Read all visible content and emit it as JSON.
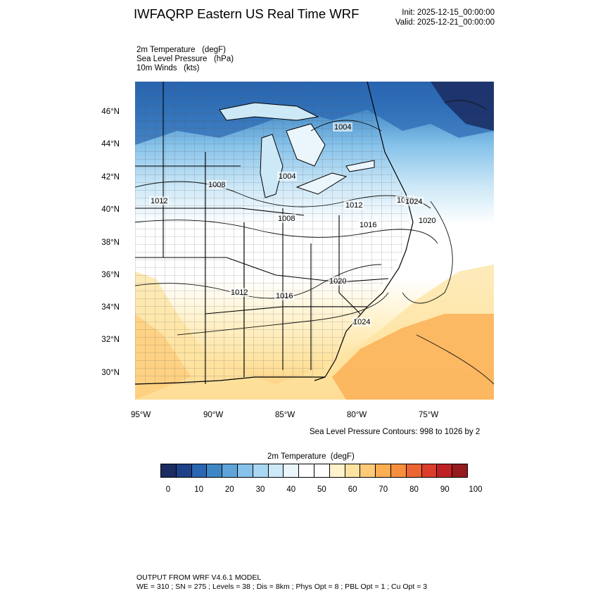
{
  "header": {
    "title": "IWFAQRP Eastern US Real Time WRF",
    "init": "Init: 2025-12-15_00:00:00",
    "valid": "Valid: 2025-12-21_00:00:00"
  },
  "fields": [
    "2m Temperature   (degF)",
    "Sea Level Pressure   (hPa)",
    "10m Winds   (kts)"
  ],
  "map": {
    "lat_labels": [
      "46°N",
      "44°N",
      "42°N",
      "40°N",
      "38°N",
      "36°N",
      "34°N",
      "32°N",
      "30°N"
    ],
    "lon_labels": [
      "95°W",
      "90°W",
      "85°W",
      "80°W",
      "75°W"
    ],
    "slp_labels": [
      "1004",
      "1004",
      "1008",
      "1012",
      "1008",
      "1012",
      "1016",
      "1020",
      "1024",
      "1020",
      "1012",
      "1016",
      "1020",
      "1024"
    ],
    "contour_note": "Sea Level Pressure Contours: 998 to 1026 by 2"
  },
  "colorbar": {
    "title": "2m Temperature  (degF)",
    "ticks": [
      "0",
      "10",
      "20",
      "30",
      "40",
      "50",
      "60",
      "70",
      "80",
      "90",
      "100"
    ],
    "colors": [
      "#1b2c62",
      "#1d4289",
      "#2a66b2",
      "#3f86c5",
      "#5ea4d9",
      "#86c2ea",
      "#a8d7f1",
      "#cde8f7",
      "#eaf5fc",
      "#ffffff",
      "#ffffff",
      "#fff2cc",
      "#fee3a0",
      "#fdca78",
      "#fbae52",
      "#f78e3e",
      "#ec6533",
      "#dc3e2e",
      "#bf2226",
      "#951b1e"
    ]
  },
  "footer": {
    "line1": "OUTPUT FROM WRF V4.6.1 MODEL",
    "line2": "WE = 310 ; SN = 275 ; Levels = 38 ; Dis = 8km ; Phys Opt = 8 ; PBL Opt = 1 ; Cu Opt = 3"
  }
}
